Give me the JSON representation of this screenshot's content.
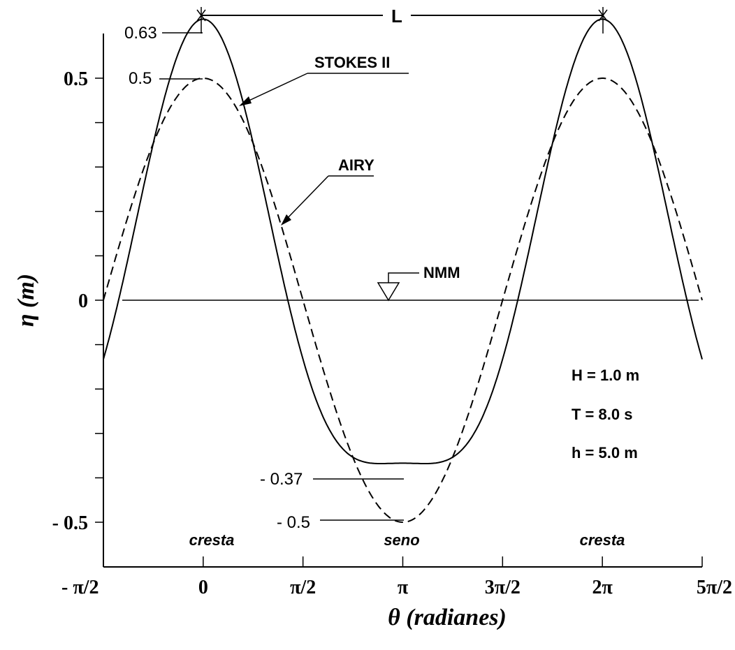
{
  "chart_data": {
    "type": "line",
    "xlabel": "θ (radianes)",
    "ylabel": "η (m)",
    "xlim": [
      -1.5707963,
      7.8539816
    ],
    "ylim": [
      -0.6,
      0.6
    ],
    "x_tick_labels": [
      "- π/2",
      "0",
      "π/2",
      "π",
      "3π/2",
      "2π",
      "5π/2"
    ],
    "y_tick_labels": [
      {
        "value": 0.5,
        "label": "0.5"
      },
      {
        "value": 0.0,
        "label": "0"
      },
      {
        "value": -0.5,
        "label": "- 0.5"
      }
    ],
    "y_minor_ticks": [
      0.4,
      0.3,
      0.2,
      0.1,
      -0.1,
      -0.2,
      -0.3,
      -0.4
    ],
    "series": [
      {
        "name": "STOKES II",
        "style": "solid",
        "first_harmonic_amp": 0.5,
        "second_harmonic_amp": 0.133
      },
      {
        "name": "AIRY",
        "style": "dashed",
        "first_harmonic_amp": 0.5,
        "second_harmonic_amp": 0.0
      }
    ],
    "annotations": {
      "stokes_crest": "0.63",
      "airy_crest": "0.5",
      "stokes_trough": "- 0.37",
      "airy_trough": "- 0.5",
      "stokes_label": "STOKES II",
      "airy_label": "AIRY",
      "mwl_label": "NMM",
      "wavelength_label": "L",
      "crest_left": "cresta",
      "trough": "seno",
      "crest_right": "cresta"
    },
    "parameters": [
      "H = 1.0 m",
      "T = 8.0 s",
      "h = 5.0 m"
    ]
  }
}
